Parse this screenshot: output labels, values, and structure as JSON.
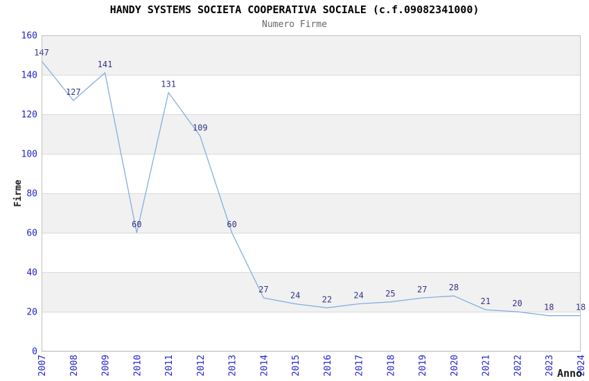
{
  "chart_data": {
    "type": "line",
    "title": "HANDY SYSTEMS SOCIETA COOPERATIVA SOCIALE (c.f.09082341000)",
    "subtitle": "Numero Firme",
    "xlabel": "Anno",
    "ylabel": "Firme",
    "categories": [
      "2007",
      "2008",
      "2009",
      "2010",
      "2011",
      "2012",
      "2013",
      "2014",
      "2015",
      "2016",
      "2017",
      "2018",
      "2019",
      "2020",
      "2021",
      "2022",
      "2023",
      "2024"
    ],
    "values": [
      147,
      127,
      141,
      60,
      131,
      109,
      60,
      27,
      24,
      22,
      24,
      25,
      27,
      28,
      21,
      20,
      18,
      18
    ],
    "ylim": [
      0,
      160
    ],
    "ytick_step": 20,
    "yticks": [
      0,
      20,
      40,
      60,
      80,
      100,
      120,
      140,
      160
    ],
    "grid": "horizontal gridlines with alternating gray bands",
    "legend": "none",
    "colors": {
      "line": "#84aede",
      "tick_label": "#2222cc",
      "data_label": "#333388",
      "band": "#f1f1f1",
      "gridline": "#d9d9d9",
      "border": "#c0c0c0",
      "title": "#000000",
      "subtitle": "#666666",
      "axis_title": "#1a1a1a",
      "background": "#ffffff"
    }
  }
}
